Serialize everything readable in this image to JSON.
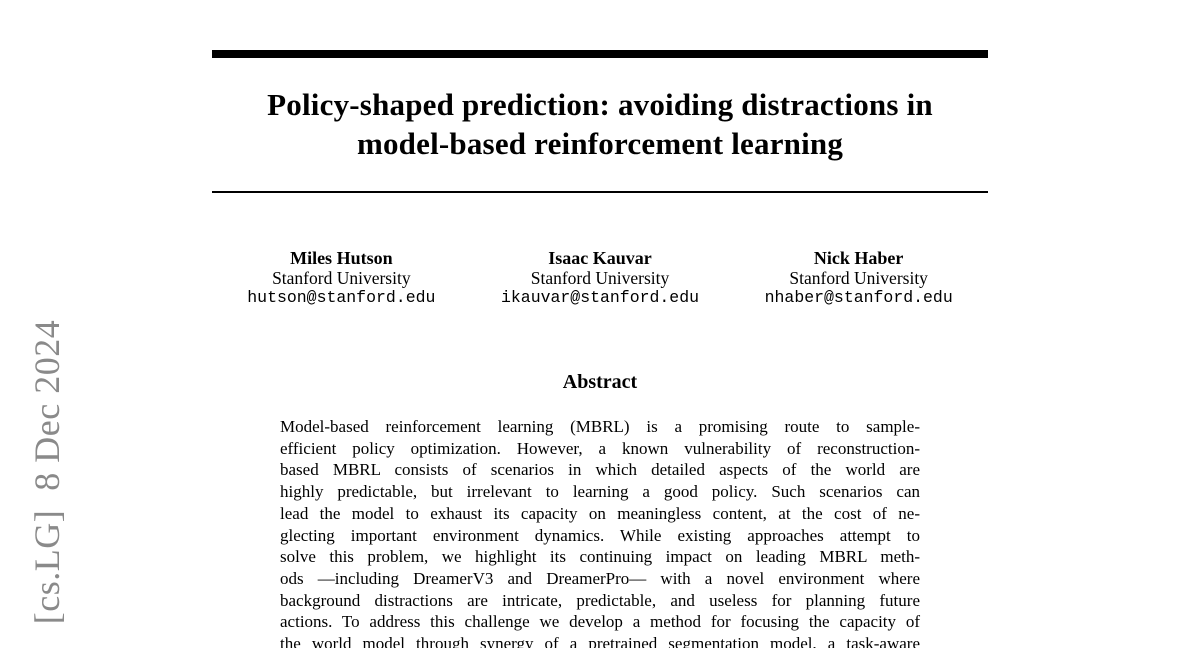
{
  "watermark": {
    "text": "[cs.LG]  8 Dec 2024",
    "color": "#8a8a8a"
  },
  "paper": {
    "title_line1": "Policy-shaped prediction: avoiding distractions in",
    "title_line2": "model-based reinforcement learning",
    "authors": [
      {
        "name": "Miles Hutson",
        "affiliation": "Stanford University",
        "email": "hutson@stanford.edu"
      },
      {
        "name": "Isaac Kauvar",
        "affiliation": "Stanford University",
        "email": "ikauvar@stanford.edu"
      },
      {
        "name": "Nick Haber",
        "affiliation": "Stanford University",
        "email": "nhaber@stanford.edu"
      }
    ],
    "abstract": {
      "heading": "Abstract",
      "lines": [
        "Model-based reinforcement learning (MBRL) is a promising route to sample-",
        "efficient policy optimization. However, a known vulnerability of reconstruction-",
        "based MBRL consists of scenarios in which detailed aspects of the world are",
        "highly predictable, but irrelevant to learning a good policy. Such scenarios can",
        "lead the model to exhaust its capacity on meaningless content, at the cost of ne-",
        "glecting important environment dynamics. While existing approaches attempt to",
        "solve this problem, we highlight its continuing impact on leading MBRL meth-",
        "ods —including DreamerV3 and DreamerPro— with a novel environment where",
        "background distractions are intricate, predictable, and useless for planning future",
        "actions. To address this challenge we develop a method for focusing the capacity of",
        "the world model through synergy of a pretrained segmentation model, a task-aware"
      ]
    }
  },
  "colors": {
    "rule": "#000000",
    "text": "#000000"
  }
}
